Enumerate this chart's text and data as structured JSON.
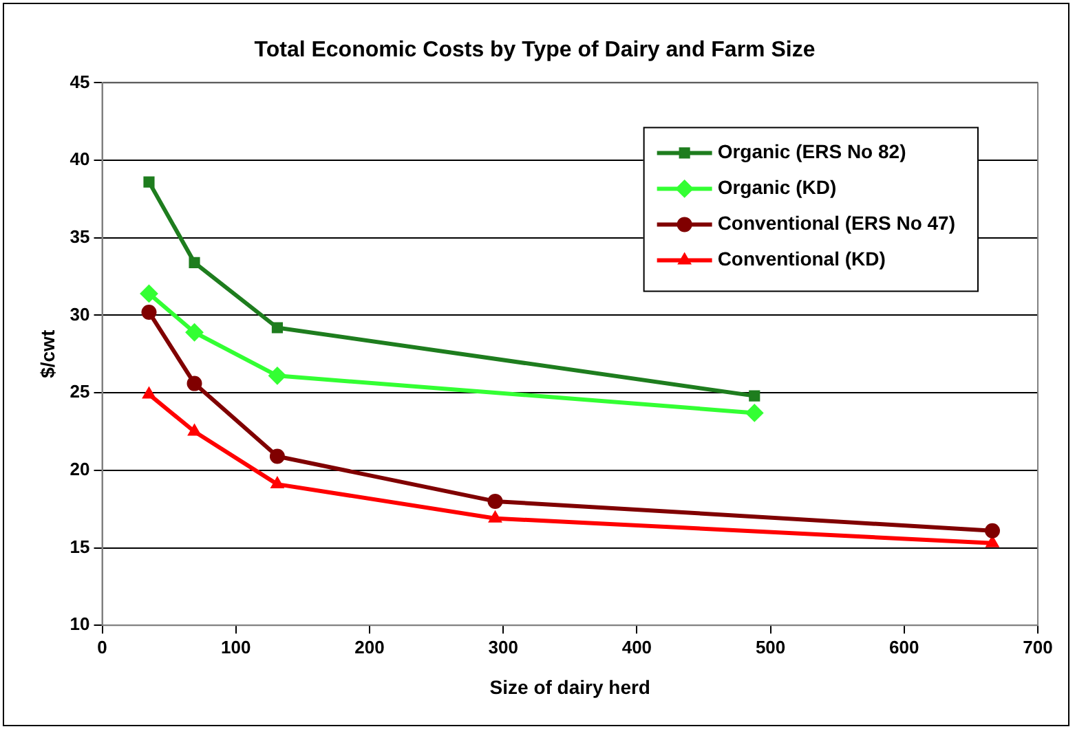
{
  "chart_data": {
    "type": "line",
    "title": "Total Economic Costs by Type of Dairy and Farm Size",
    "xlabel": "Size of dairy herd",
    "ylabel": "$/cwt",
    "xlim": [
      0,
      700
    ],
    "xticks": [
      0,
      100,
      200,
      300,
      400,
      500,
      600,
      700
    ],
    "ylim": [
      10,
      45
    ],
    "yticks": [
      10,
      15,
      20,
      25,
      30,
      35,
      40,
      45
    ],
    "grid": "y",
    "legend": "top right",
    "line_style": "solid",
    "series": [
      {
        "name": "Organic (ERS No 82)",
        "color": "#1e7d1e",
        "marker": "square",
        "x": [
          35,
          69,
          131,
          488
        ],
        "values": [
          38.6,
          33.4,
          29.2,
          24.8
        ]
      },
      {
        "name": "Organic (KD)",
        "color": "#33ff33",
        "marker": "diamond",
        "x": [
          35,
          69,
          131,
          488
        ],
        "values": [
          31.4,
          28.9,
          26.1,
          23.7
        ]
      },
      {
        "name": "Conventional (ERS No 47)",
        "color": "#800000",
        "marker": "circle",
        "x": [
          35,
          69,
          131,
          294,
          666
        ],
        "values": [
          30.2,
          25.6,
          20.9,
          18.0,
          16.1
        ]
      },
      {
        "name": "Conventional (KD)",
        "color": "#ff0000",
        "marker": "triangle",
        "x": [
          35,
          69,
          131,
          294,
          666
        ],
        "values": [
          24.9,
          22.5,
          19.1,
          16.9,
          15.3
        ]
      }
    ]
  }
}
